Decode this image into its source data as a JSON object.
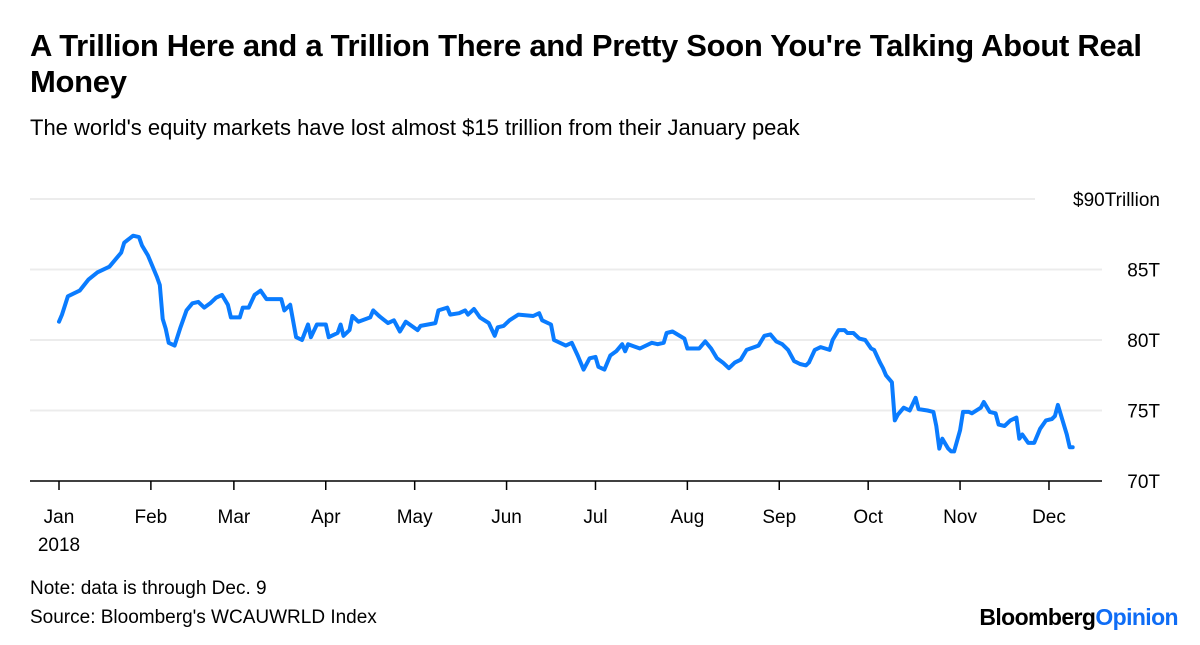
{
  "title": "A Trillion Here and a Trillion There and Pretty Soon You're Talking About Real Money",
  "subtitle": "The world's equity markets have lost almost $15 trillion from their January peak",
  "note": "Note: data is through Dec. 9",
  "source": "Source: Bloomberg's WCAUWRLD Index",
  "logo": {
    "part1": "Bloomberg",
    "part2": "Opinion"
  },
  "colors": {
    "line": "#0a7cff",
    "grid": "#ececec",
    "axis": "#000000",
    "logo_accent": "#0f6df5"
  },
  "chart_data": {
    "type": "line",
    "title": "A Trillion Here and a Trillion There and Pretty Soon You're Talking About Real Money",
    "subtitle": "The world's equity markets have lost almost $15 trillion from their January peak",
    "ylim": [
      70,
      90
    ],
    "xlim": [
      "2018-01-01",
      "2018-12-31"
    ],
    "grid": true,
    "y_axis_side": "right",
    "y_ticks": [
      {
        "value": 90,
        "label": "$90Trillion"
      },
      {
        "value": 85,
        "label": "85T"
      },
      {
        "value": 80,
        "label": "80T"
      },
      {
        "value": 75,
        "label": "75T"
      },
      {
        "value": 70,
        "label": "70T"
      }
    ],
    "x_ticks": [
      {
        "date": "2018-01-01",
        "label": "Jan",
        "sublabel": "2018"
      },
      {
        "date": "2018-02-01",
        "label": "Feb"
      },
      {
        "date": "2018-03-01",
        "label": "Mar"
      },
      {
        "date": "2018-04-01",
        "label": "Apr"
      },
      {
        "date": "2018-05-01",
        "label": "May"
      },
      {
        "date": "2018-06-01",
        "label": "Jun"
      },
      {
        "date": "2018-07-01",
        "label": "Jul"
      },
      {
        "date": "2018-08-01",
        "label": "Aug"
      },
      {
        "date": "2018-09-01",
        "label": "Sep"
      },
      {
        "date": "2018-10-01",
        "label": "Oct"
      },
      {
        "date": "2018-11-01",
        "label": "Nov"
      },
      {
        "date": "2018-12-01",
        "label": "Dec"
      }
    ],
    "series": [
      {
        "points": [
          [
            "2018-01-01",
            81.3
          ],
          [
            "2018-01-02",
            81.8
          ],
          [
            "2018-01-04",
            83.1
          ],
          [
            "2018-01-08",
            83.5
          ],
          [
            "2018-01-11",
            84.3
          ],
          [
            "2018-01-14",
            84.8
          ],
          [
            "2018-01-18",
            85.2
          ],
          [
            "2018-01-22",
            86.2
          ],
          [
            "2018-01-23",
            86.9
          ],
          [
            "2018-01-26",
            87.4
          ],
          [
            "2018-01-28",
            87.3
          ],
          [
            "2018-01-29",
            86.7
          ],
          [
            "2018-01-31",
            86.0
          ],
          [
            "2018-02-01",
            85.5
          ],
          [
            "2018-02-03",
            84.5
          ],
          [
            "2018-02-04",
            83.9
          ],
          [
            "2018-02-05",
            81.5
          ],
          [
            "2018-02-06",
            80.8
          ],
          [
            "2018-02-07",
            79.8
          ],
          [
            "2018-02-09",
            79.6
          ],
          [
            "2018-02-11",
            80.9
          ],
          [
            "2018-02-13",
            82.1
          ],
          [
            "2018-02-15",
            82.6
          ],
          [
            "2018-02-17",
            82.7
          ],
          [
            "2018-02-19",
            82.3
          ],
          [
            "2018-02-21",
            82.6
          ],
          [
            "2018-02-23",
            83.0
          ],
          [
            "2018-02-25",
            83.2
          ],
          [
            "2018-02-27",
            82.5
          ],
          [
            "2018-02-28",
            81.6
          ],
          [
            "2018-03-03",
            81.6
          ],
          [
            "2018-03-04",
            82.3
          ],
          [
            "2018-03-06",
            82.3
          ],
          [
            "2018-03-08",
            83.2
          ],
          [
            "2018-03-10",
            83.5
          ],
          [
            "2018-03-12",
            82.9
          ],
          [
            "2018-03-17",
            82.9
          ],
          [
            "2018-03-18",
            82.1
          ],
          [
            "2018-03-20",
            82.5
          ],
          [
            "2018-03-22",
            80.2
          ],
          [
            "2018-03-24",
            80.0
          ],
          [
            "2018-03-26",
            81.1
          ],
          [
            "2018-03-27",
            80.2
          ],
          [
            "2018-03-29",
            81.1
          ],
          [
            "2018-04-01",
            81.1
          ],
          [
            "2018-04-02",
            80.2
          ],
          [
            "2018-04-05",
            80.5
          ],
          [
            "2018-04-06",
            81.1
          ],
          [
            "2018-04-07",
            80.3
          ],
          [
            "2018-04-09",
            80.7
          ],
          [
            "2018-04-10",
            81.7
          ],
          [
            "2018-04-12",
            81.3
          ],
          [
            "2018-04-16",
            81.6
          ],
          [
            "2018-04-17",
            82.1
          ],
          [
            "2018-04-19",
            81.7
          ],
          [
            "2018-04-22",
            81.2
          ],
          [
            "2018-04-24",
            81.4
          ],
          [
            "2018-04-26",
            80.6
          ],
          [
            "2018-04-28",
            81.3
          ],
          [
            "2018-05-02",
            80.7
          ],
          [
            "2018-05-03",
            81.0
          ],
          [
            "2018-05-08",
            81.2
          ],
          [
            "2018-05-09",
            82.1
          ],
          [
            "2018-05-12",
            82.3
          ],
          [
            "2018-05-13",
            81.8
          ],
          [
            "2018-05-16",
            81.9
          ],
          [
            "2018-05-18",
            82.1
          ],
          [
            "2018-05-19",
            81.8
          ],
          [
            "2018-05-21",
            82.2
          ],
          [
            "2018-05-23",
            81.6
          ],
          [
            "2018-05-26",
            81.2
          ],
          [
            "2018-05-28",
            80.3
          ],
          [
            "2018-05-29",
            80.9
          ],
          [
            "2018-05-31",
            81.0
          ],
          [
            "2018-06-02",
            81.4
          ],
          [
            "2018-06-05",
            81.8
          ],
          [
            "2018-06-10",
            81.7
          ],
          [
            "2018-06-12",
            81.9
          ],
          [
            "2018-06-13",
            81.4
          ],
          [
            "2018-06-16",
            81.1
          ],
          [
            "2018-06-17",
            80.0
          ],
          [
            "2018-06-21",
            79.6
          ],
          [
            "2018-06-23",
            79.8
          ],
          [
            "2018-06-25",
            78.9
          ],
          [
            "2018-06-27",
            77.9
          ],
          [
            "2018-06-29",
            78.7
          ],
          [
            "2018-07-01",
            78.8
          ],
          [
            "2018-07-02",
            78.1
          ],
          [
            "2018-07-04",
            77.9
          ],
          [
            "2018-07-06",
            78.9
          ],
          [
            "2018-07-08",
            79.2
          ],
          [
            "2018-07-10",
            79.7
          ],
          [
            "2018-07-11",
            79.2
          ],
          [
            "2018-07-12",
            79.7
          ],
          [
            "2018-07-16",
            79.4
          ],
          [
            "2018-07-20",
            79.8
          ],
          [
            "2018-07-22",
            79.7
          ],
          [
            "2018-07-24",
            79.8
          ],
          [
            "2018-07-25",
            80.5
          ],
          [
            "2018-07-27",
            80.6
          ],
          [
            "2018-07-31",
            80.1
          ],
          [
            "2018-08-01",
            79.4
          ],
          [
            "2018-08-05",
            79.4
          ],
          [
            "2018-08-07",
            79.9
          ],
          [
            "2018-08-09",
            79.4
          ],
          [
            "2018-08-11",
            78.7
          ],
          [
            "2018-08-13",
            78.4
          ],
          [
            "2018-08-15",
            78.0
          ],
          [
            "2018-08-17",
            78.4
          ],
          [
            "2018-08-19",
            78.6
          ],
          [
            "2018-08-21",
            79.3
          ],
          [
            "2018-08-25",
            79.6
          ],
          [
            "2018-08-27",
            80.3
          ],
          [
            "2018-08-29",
            80.4
          ],
          [
            "2018-08-31",
            79.9
          ],
          [
            "2018-09-02",
            79.7
          ],
          [
            "2018-09-04",
            79.3
          ],
          [
            "2018-09-06",
            78.5
          ],
          [
            "2018-09-08",
            78.3
          ],
          [
            "2018-09-10",
            78.2
          ],
          [
            "2018-09-11",
            78.4
          ],
          [
            "2018-09-13",
            79.3
          ],
          [
            "2018-09-15",
            79.5
          ],
          [
            "2018-09-18",
            79.3
          ],
          [
            "2018-09-19",
            80.0
          ],
          [
            "2018-09-21",
            80.7
          ],
          [
            "2018-09-23",
            80.7
          ],
          [
            "2018-09-24",
            80.5
          ],
          [
            "2018-09-26",
            80.5
          ],
          [
            "2018-09-28",
            80.1
          ],
          [
            "2018-09-30",
            80.0
          ],
          [
            "2018-10-02",
            79.4
          ],
          [
            "2018-10-03",
            79.3
          ],
          [
            "2018-10-05",
            78.4
          ],
          [
            "2018-10-06",
            78.0
          ],
          [
            "2018-10-07",
            77.5
          ],
          [
            "2018-10-09",
            77.0
          ],
          [
            "2018-10-10",
            74.3
          ],
          [
            "2018-10-11",
            74.7
          ],
          [
            "2018-10-13",
            75.2
          ],
          [
            "2018-10-15",
            75.0
          ],
          [
            "2018-10-17",
            75.9
          ],
          [
            "2018-10-18",
            75.1
          ],
          [
            "2018-10-21",
            75.0
          ],
          [
            "2018-10-23",
            74.9
          ],
          [
            "2018-10-24",
            73.9
          ],
          [
            "2018-10-25",
            72.3
          ],
          [
            "2018-10-26",
            73.0
          ],
          [
            "2018-10-28",
            72.3
          ],
          [
            "2018-10-29",
            72.1
          ],
          [
            "2018-10-30",
            72.1
          ],
          [
            "2018-11-01",
            73.6
          ],
          [
            "2018-11-02",
            74.9
          ],
          [
            "2018-11-04",
            74.9
          ],
          [
            "2018-11-05",
            74.8
          ],
          [
            "2018-11-08",
            75.2
          ],
          [
            "2018-11-09",
            75.6
          ],
          [
            "2018-11-11",
            74.9
          ],
          [
            "2018-11-13",
            74.8
          ],
          [
            "2018-11-14",
            74.0
          ],
          [
            "2018-11-16",
            73.9
          ],
          [
            "2018-11-18",
            74.3
          ],
          [
            "2018-11-20",
            74.5
          ],
          [
            "2018-11-21",
            73.0
          ],
          [
            "2018-11-22",
            73.3
          ],
          [
            "2018-11-24",
            72.7
          ],
          [
            "2018-11-26",
            72.7
          ],
          [
            "2018-11-28",
            73.7
          ],
          [
            "2018-11-30",
            74.3
          ],
          [
            "2018-12-02",
            74.4
          ],
          [
            "2018-12-03",
            74.6
          ],
          [
            "2018-12-04",
            75.4
          ],
          [
            "2018-12-06",
            74.0
          ],
          [
            "2018-12-07",
            73.3
          ],
          [
            "2018-12-08",
            72.4
          ],
          [
            "2018-12-09",
            72.4
          ]
        ]
      }
    ]
  }
}
